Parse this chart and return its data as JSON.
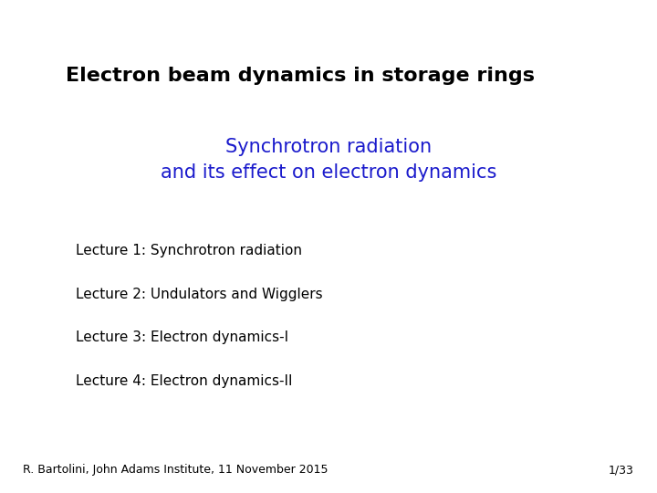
{
  "background_color": "#ffffff",
  "title": "Electron beam dynamics in storage rings",
  "title_color": "#000000",
  "title_fontsize": 16,
  "title_bold": true,
  "subtitle_line1": "Synchrotron radiation",
  "subtitle_line2": "and its effect on electron dynamics",
  "subtitle_color": "#1a1acc",
  "subtitle_fontsize": 15,
  "lectures": [
    "Lecture 1: Synchrotron radiation",
    "Lecture 2: Undulators and Wigglers",
    "Lecture 3: Electron dynamics-I",
    "Lecture 4: Electron dynamics-II"
  ],
  "lecture_color": "#000000",
  "lecture_fontsize": 11,
  "footer_left": "R. Bartolini, John Adams Institute, 11 November 2015",
  "footer_right": "1/33",
  "footer_color": "#000000",
  "footer_fontsize": 9
}
